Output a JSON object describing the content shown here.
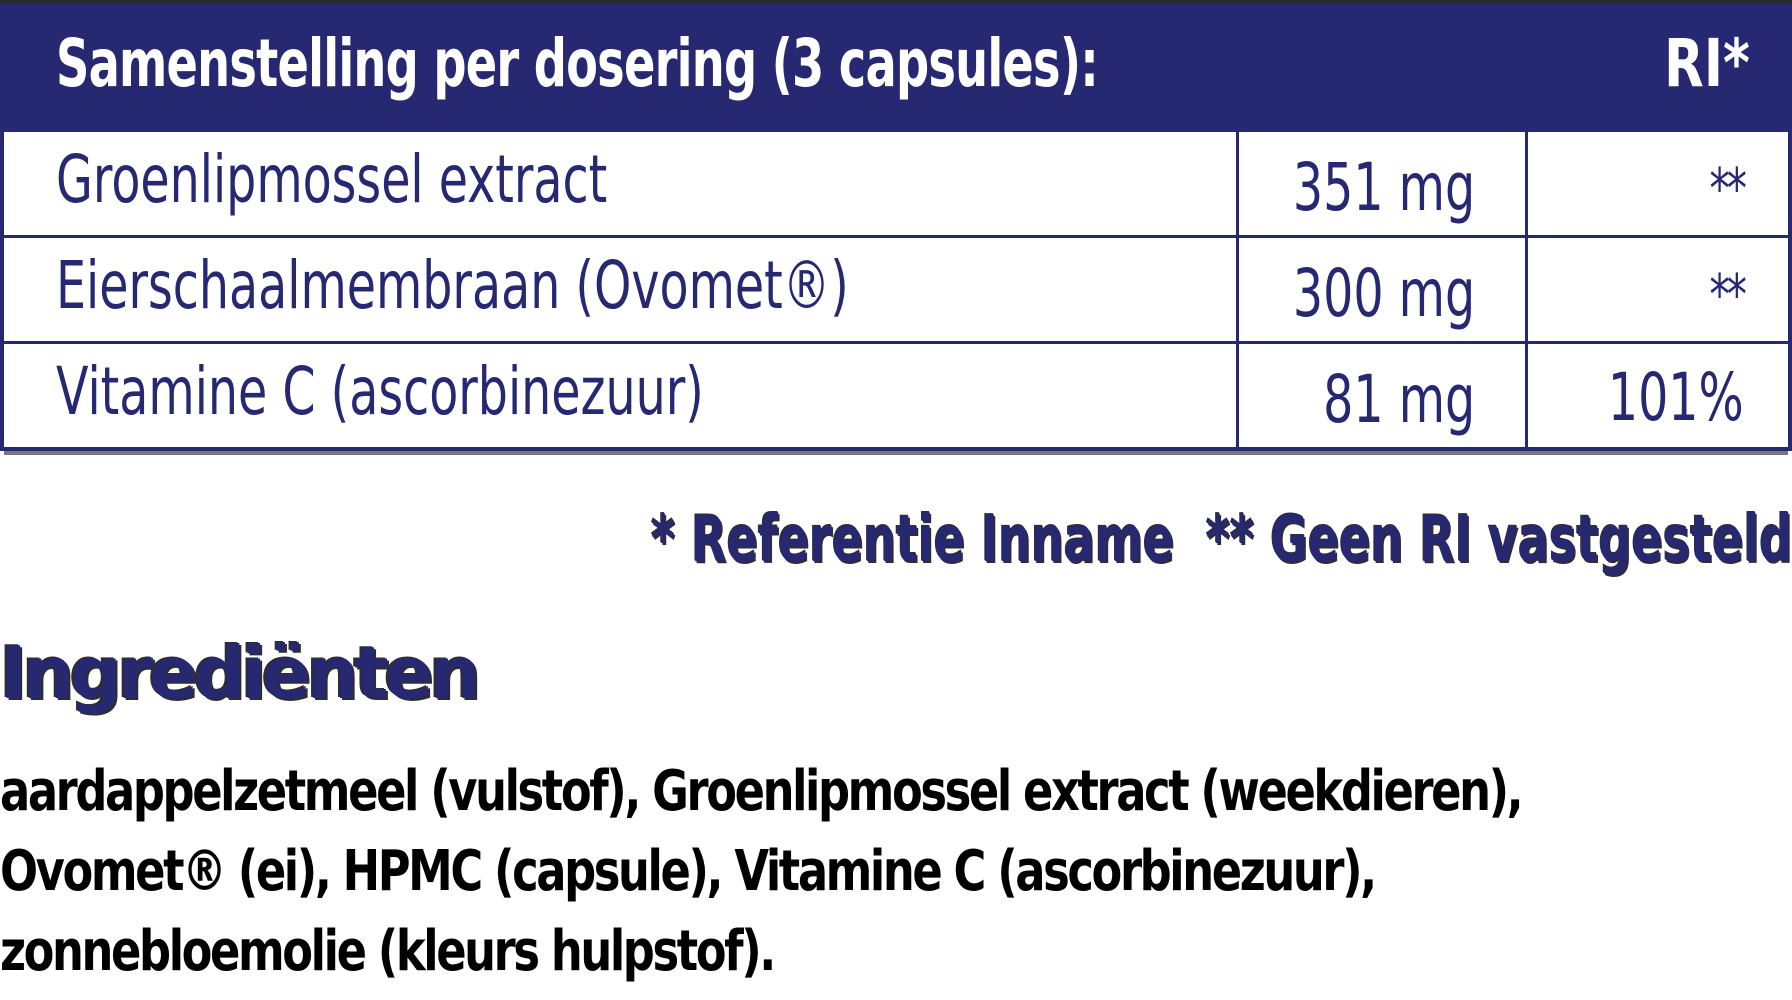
{
  "table": {
    "header": {
      "title": "Samenstelling per dosering (3 capsules):",
      "ri_label": "RI*"
    },
    "rows": [
      {
        "name": "Groenlipmossel extract",
        "amount": "351 mg",
        "ri": "**"
      },
      {
        "name": "Eierschaalmembraan (Ovomet®)",
        "amount": "300 mg",
        "ri": "**"
      },
      {
        "name": "Vitamine C (ascorbinezuur)",
        "amount": "81 mg",
        "ri": "101%"
      }
    ]
  },
  "footnote": {
    "ri_definition": "* Referentie Inname",
    "no_ri": "** Geen RI vastgesteld"
  },
  "ingredients": {
    "title": "Ingrediënten",
    "lines": [
      "aardappelzetmeel (vulstof), Groenlipmossel extract (weekdieren),",
      "Ovomet® (ei), HPMC (capsule), Vitamine C (ascorbinezuur),",
      "zonnebloemolie (kleurs hulpstof)."
    ]
  },
  "colors": {
    "navy": "#272872",
    "header_text": "#ffffff",
    "body_text": "#000000",
    "top_strip": "#2b2b2b"
  }
}
